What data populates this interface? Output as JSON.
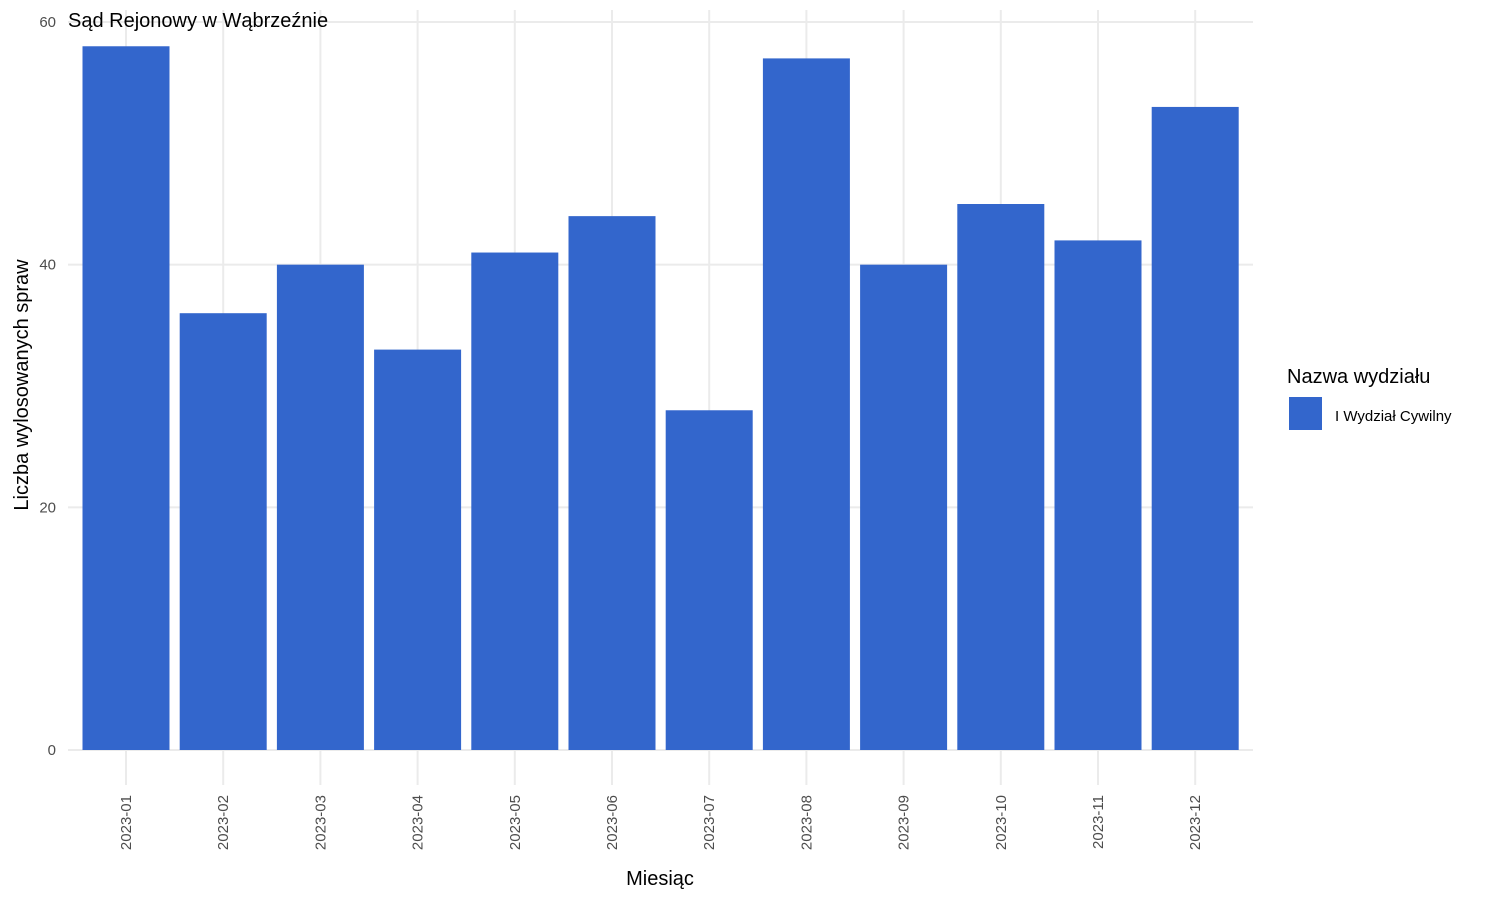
{
  "chart_data": {
    "type": "bar",
    "title": "Sąd Rejonowy w Wąbrzeźnie",
    "xlabel": "Miesiąc",
    "ylabel": "Liczba wylosowanych spraw",
    "categories": [
      "2023-01",
      "2023-02",
      "2023-03",
      "2023-04",
      "2023-05",
      "2023-06",
      "2023-07",
      "2023-08",
      "2023-09",
      "2023-10",
      "2023-11",
      "2023-12"
    ],
    "series": [
      {
        "name": "I Wydział Cywilny",
        "values": [
          58,
          36,
          40,
          33,
          41,
          44,
          28,
          57,
          40,
          45,
          42,
          53
        ],
        "color": "#3366cc"
      }
    ],
    "ylim": [
      0,
      60
    ],
    "yticks": [
      0,
      20,
      40,
      60
    ],
    "grid": true,
    "legend": {
      "title": "Nazwa wydziału",
      "position": "right"
    }
  }
}
